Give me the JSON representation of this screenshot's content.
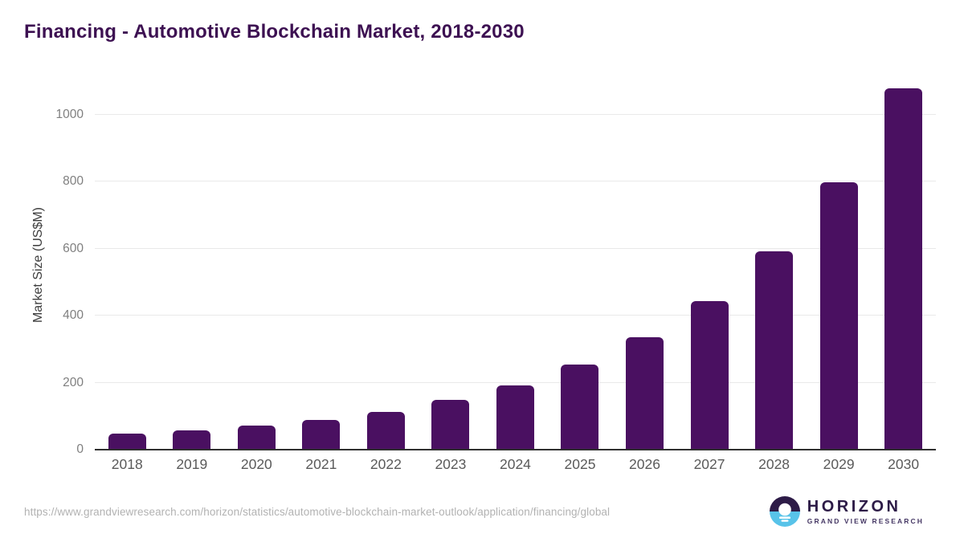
{
  "chart_data": {
    "type": "bar",
    "title": "Financing - Automotive Blockchain Market, 2018-2030",
    "ylabel": "Market Size (US$M)",
    "xlabel": "",
    "categories": [
      "2018",
      "2019",
      "2020",
      "2021",
      "2022",
      "2023",
      "2024",
      "2025",
      "2026",
      "2027",
      "2028",
      "2029",
      "2030"
    ],
    "values": [
      47,
      57,
      72,
      90,
      113,
      148,
      192,
      255,
      336,
      443,
      593,
      798,
      1078
    ],
    "yticks": [
      0,
      200,
      400,
      600,
      800,
      1000
    ],
    "ylim": [
      0,
      1103
    ],
    "grid": "horizontal",
    "legend": "none",
    "bar_color": "#4a1061"
  },
  "colors": {
    "title": "#3d1152",
    "bar": "#4a1061",
    "gridline": "#e9e9e9",
    "axis_line": "#2f2f2f",
    "ytick_text": "#7f7f7f",
    "xtick_text": "#5a5a5a",
    "url_text": "#b2b2b2",
    "logo_dark_purple": "#2d1b47",
    "logo_light_blue": "#58c3e9"
  },
  "footer": {
    "source_url": "https://www.grandviewresearch.com/horizon/statistics/automotive-blockchain-market-outlook/application/financing/global",
    "logo": {
      "name": "HORIZON",
      "subtitle": "GRAND VIEW RESEARCH"
    }
  }
}
